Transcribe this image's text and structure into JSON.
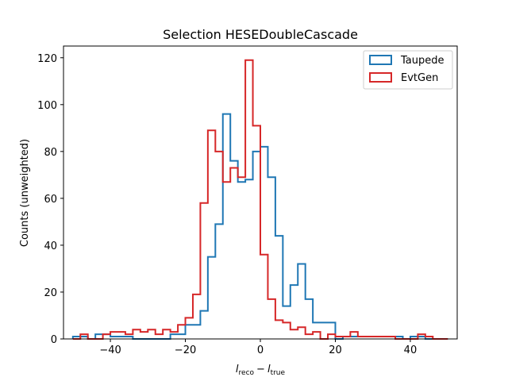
{
  "chart_data": {
    "type": "histogram",
    "title": "Selection HESEDoubleCascade",
    "ylabel": "Counts (unweighted)",
    "xlabel": {
      "var1": "l",
      "sub1": "reco",
      "minus": "−",
      "var2": "l",
      "sub2": "true"
    },
    "xlim": [
      -52.5,
      52.5
    ],
    "ylim": [
      0,
      125
    ],
    "x_ticks": [
      -40,
      -20,
      0,
      20,
      40
    ],
    "x_tick_labels": [
      "−40",
      "−20",
      "0",
      "20",
      "40"
    ],
    "y_ticks": [
      0,
      20,
      40,
      60,
      80,
      100,
      120
    ],
    "y_tick_labels": [
      "0",
      "20",
      "40",
      "60",
      "80",
      "100",
      "120"
    ],
    "legend_position": "top-right",
    "bin_edges": [
      -50,
      -48,
      -46,
      -44,
      -42,
      -40,
      -38,
      -36,
      -34,
      -32,
      -30,
      -28,
      -26,
      -24,
      -22,
      -20,
      -18,
      -16,
      -14,
      -12,
      -10,
      -8,
      -6,
      -4,
      -2,
      0,
      2,
      4,
      6,
      8,
      10,
      12,
      14,
      16,
      18,
      20,
      22,
      24,
      26,
      28,
      30,
      32,
      34,
      36,
      38,
      40,
      42,
      44,
      46,
      48,
      50
    ],
    "series": [
      {
        "name": "Taupede",
        "color": "#1f77b4",
        "counts": [
          1,
          1,
          0,
          2,
          2,
          1,
          1,
          1,
          0,
          0,
          0,
          0,
          0,
          2,
          2,
          6,
          6,
          12,
          35,
          49,
          96,
          76,
          67,
          68,
          80,
          82,
          69,
          44,
          14,
          23,
          32,
          17,
          7,
          7,
          7,
          0,
          1,
          1,
          1,
          1,
          1,
          1,
          1,
          1,
          0,
          1,
          1,
          0,
          0,
          0
        ]
      },
      {
        "name": "EvtGen",
        "color": "#d62728",
        "counts": [
          0,
          2,
          0,
          0,
          2,
          3,
          3,
          2,
          4,
          3,
          4,
          2,
          4,
          3,
          6,
          9,
          19,
          58,
          89,
          80,
          67,
          73,
          69,
          119,
          91,
          36,
          17,
          8,
          7,
          4,
          5,
          2,
          3,
          0,
          2,
          1,
          1,
          3,
          1,
          1,
          1,
          1,
          1,
          0,
          0,
          0,
          2,
          1,
          0,
          0
        ]
      }
    ]
  }
}
